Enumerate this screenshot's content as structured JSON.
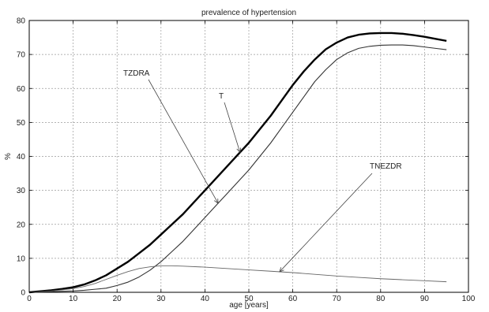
{
  "chart_data": {
    "type": "line",
    "title": "prevalence of hypertension",
    "xlabel": "age [years]",
    "ylabel": "%",
    "xlim": [
      0,
      100
    ],
    "ylim": [
      0,
      80
    ],
    "xticks": [
      0,
      10,
      20,
      30,
      40,
      50,
      60,
      70,
      80,
      90,
      100
    ],
    "yticks": [
      0,
      10,
      20,
      30,
      40,
      50,
      60,
      70,
      80
    ],
    "grid": true,
    "series": [
      {
        "name": "T",
        "color": "#000000",
        "weight": "bold",
        "x": [
          0,
          2.5,
          5,
          7.5,
          10,
          12.5,
          15,
          17.5,
          20,
          22.5,
          25,
          27.5,
          30,
          32.5,
          35,
          37.5,
          40,
          42.5,
          45,
          47.5,
          50,
          52.5,
          55,
          57.5,
          60,
          62.5,
          65,
          67.5,
          70,
          72.5,
          75,
          77.5,
          80,
          82.5,
          85,
          87.5,
          90,
          92.5,
          95
        ],
        "y": [
          0,
          0.3,
          0.6,
          1,
          1.5,
          2.3,
          3.5,
          5,
          7,
          9,
          11.5,
          14,
          17,
          20,
          23,
          26.5,
          30,
          33.5,
          37,
          40.5,
          44,
          48,
          52,
          56.5,
          61,
          65,
          68.5,
          71.5,
          73.5,
          75,
          75.8,
          76.2,
          76.3,
          76.3,
          76.1,
          75.7,
          75.2,
          74.6,
          74
        ]
      },
      {
        "name": "TZDRA",
        "color": "#333333",
        "weight": "normal",
        "x": [
          0,
          2.5,
          5,
          7.5,
          10,
          12.5,
          15,
          17.5,
          20,
          22.5,
          25,
          27.5,
          30,
          32.5,
          35,
          37.5,
          40,
          42.5,
          45,
          47.5,
          50,
          52.5,
          55,
          57.5,
          60,
          62.5,
          65,
          67.5,
          70,
          72.5,
          75,
          77.5,
          80,
          82.5,
          85,
          87.5,
          90,
          92.5,
          95
        ],
        "y": [
          0,
          0.1,
          0.2,
          0.3,
          0.4,
          0.6,
          0.9,
          1.2,
          2,
          3,
          4.5,
          6.5,
          9,
          12,
          15,
          18.5,
          22,
          25.5,
          29,
          32.5,
          36,
          40,
          44,
          48.5,
          53,
          57.5,
          62,
          65.5,
          68.5,
          70.5,
          71.8,
          72.4,
          72.7,
          72.8,
          72.8,
          72.6,
          72.2,
          71.8,
          71.4
        ]
      },
      {
        "name": "TNEZDR",
        "color": "#666666",
        "weight": "thin",
        "x": [
          0,
          2.5,
          5,
          7.5,
          10,
          12.5,
          15,
          17.5,
          20,
          22.5,
          25,
          27.5,
          30,
          32.5,
          35,
          40,
          45,
          50,
          55,
          60,
          65,
          70,
          75,
          80,
          85,
          90,
          95
        ],
        "y": [
          0,
          0.2,
          0.4,
          0.7,
          1.1,
          1.7,
          2.6,
          3.8,
          5,
          6.1,
          7,
          7.5,
          7.8,
          7.8,
          7.7,
          7.4,
          7,
          6.6,
          6.2,
          5.8,
          5.3,
          4.8,
          4.4,
          4,
          3.7,
          3.4,
          3.1
        ]
      }
    ],
    "annotations": [
      {
        "text": "TZDRA",
        "series": "TZDRA"
      },
      {
        "text": "T",
        "series": "T"
      },
      {
        "text": "TNEZDR",
        "series": "TNEZDR"
      }
    ]
  }
}
